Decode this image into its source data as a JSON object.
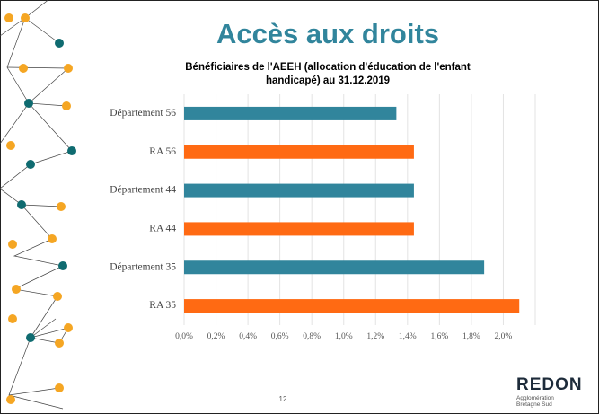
{
  "title": "Accès aux droits",
  "page_number": "12",
  "logo": {
    "name": "REDON",
    "tagline": "Agglomération Bretagne Sud"
  },
  "chart_data": {
    "type": "hbar",
    "title": "Bénéficiaires de l'AEEH (allocation d'éducation de l'enfant handicapé) au 31.12.2019",
    "categories": [
      "Département 56",
      "RA 56",
      "Département 44",
      "RA 44",
      "Département 35",
      "RA 35"
    ],
    "values": [
      1.33,
      1.44,
      1.44,
      1.44,
      1.88,
      2.1
    ],
    "colors": [
      "#31859c",
      "#ff6a13",
      "#31859c",
      "#ff6a13",
      "#31859c",
      "#ff6a13"
    ],
    "xlim": [
      0,
      2.2
    ],
    "xticks": [
      {
        "value": 0,
        "label": "0,0%"
      },
      {
        "value": 0.2,
        "label": "0,2%"
      },
      {
        "value": 0.4,
        "label": "0,4%"
      },
      {
        "value": 0.6,
        "label": "0,6%"
      },
      {
        "value": 0.8,
        "label": "0,8%"
      },
      {
        "value": 1.0,
        "label": "1,0%"
      },
      {
        "value": 1.2,
        "label": "1,2%"
      },
      {
        "value": 1.4,
        "label": "1,4%"
      },
      {
        "value": 1.6,
        "label": "1,6%"
      },
      {
        "value": 1.8,
        "label": "1,8%"
      },
      {
        "value": 2.0,
        "label": "2,0%"
      }
    ],
    "grid": true
  }
}
